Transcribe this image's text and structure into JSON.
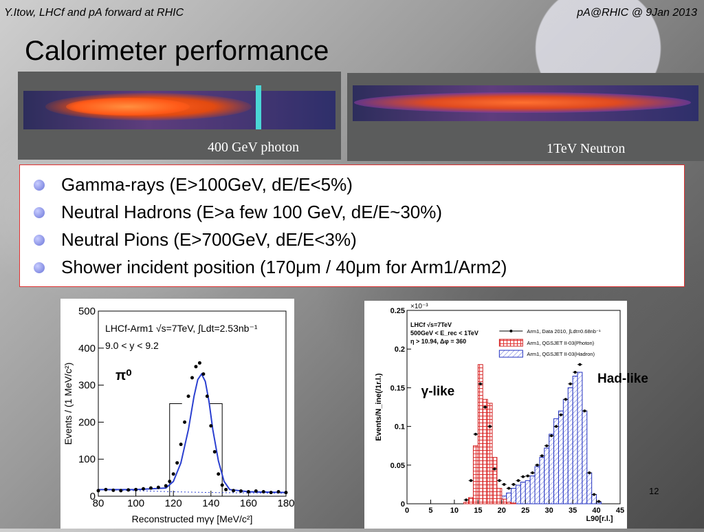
{
  "header": {
    "left": "Y.Itow,  LHCf and pA forward at RHIC",
    "right": "pA@RHIC @ 9Jan 2013"
  },
  "title": "Calorimeter performance",
  "images": [
    {
      "caption": "400 GeV photon"
    },
    {
      "caption": "1TeV Neutron"
    }
  ],
  "bullets": [
    "Gamma-rays (E>100GeV, dE/E<5%)",
    "Neutral Hadrons (E>a few 100 GeV, dE/E~30%)",
    "Neutral Pions (E>700GeV, dE/E<3%)",
    "Shower incident position (170μm / 40μm for Arm1/Arm2)"
  ],
  "page_number": "12",
  "chart_data": [
    {
      "type": "scatter",
      "xlabel": "Reconstructed mγγ [MeV/c²]",
      "ylabel": "Events / (1 MeV/c²)",
      "xlim": [
        80,
        180
      ],
      "ylim": [
        0,
        500
      ],
      "xticks": [
        "80",
        "100",
        "120",
        "140",
        "160",
        "180"
      ],
      "yticks": [
        "0",
        "100",
        "200",
        "300",
        "400",
        "500"
      ],
      "annotations": [
        "LHCf-Arm1 √s=7TeV, ∫Ldt=2.53nb⁻¹",
        "9.0 < y < 9.2",
        "π⁰"
      ],
      "x": [
        80,
        84,
        88,
        92,
        96,
        100,
        104,
        108,
        112,
        116,
        118,
        120,
        122,
        124,
        126,
        128,
        130,
        132,
        134,
        136,
        138,
        140,
        142,
        144,
        146,
        148,
        152,
        156,
        160,
        164,
        168,
        172,
        176,
        180
      ],
      "y": [
        15,
        18,
        16,
        15,
        17,
        18,
        20,
        22,
        24,
        28,
        40,
        60,
        90,
        140,
        200,
        270,
        320,
        350,
        360,
        330,
        270,
        190,
        120,
        60,
        30,
        18,
        15,
        14,
        12,
        14,
        12,
        10,
        12,
        10
      ],
      "fit": [
        [
          80,
          18
        ],
        [
          100,
          18
        ],
        [
          116,
          22
        ],
        [
          120,
          40
        ],
        [
          124,
          90
        ],
        [
          128,
          180
        ],
        [
          131,
          270
        ],
        [
          133,
          315
        ],
        [
          135,
          330
        ],
        [
          137,
          310
        ],
        [
          139,
          255
        ],
        [
          141,
          180
        ],
        [
          144,
          95
        ],
        [
          147,
          40
        ],
        [
          150,
          18
        ],
        [
          160,
          12
        ],
        [
          180,
          10
        ]
      ],
      "signal_window": [
        118,
        146
      ]
    },
    {
      "type": "bar",
      "xlabel": "L90[r.l.]",
      "ylabel": "Events/N_ine(/1r.l.)",
      "xlim": [
        0,
        45
      ],
      "ylim": [
        0,
        0.25
      ],
      "yscale_note": "×10⁻³",
      "xticks": [
        "0",
        "5",
        "10",
        "15",
        "20",
        "25",
        "30",
        "35",
        "40",
        "45"
      ],
      "yticks": [
        "0",
        "0.05",
        "0.1",
        "0.15",
        "0.2",
        "0.25"
      ],
      "legend": [
        "Arm1, Data 2010, ∫Ldt=0.68nb⁻¹",
        "Arm1, QGSJET II-03(Photon)",
        "Arm1, QGSJET II-03(Hadron)"
      ],
      "legend_position": "top-right",
      "annotations": [
        "LHCf √s=7TeV",
        "500GeV < E_rec < 1TeV",
        "η > 10.94, Δφ = 360",
        "γ-like",
        "Had-like"
      ],
      "bin_edges": [
        12,
        13,
        14,
        15,
        16,
        17,
        18,
        19,
        20,
        21,
        22,
        23,
        24,
        25,
        26,
        27,
        28,
        29,
        30,
        31,
        32,
        33,
        34,
        35,
        36,
        37,
        38,
        39,
        40,
        41
      ],
      "series": [
        {
          "name": "Arm1, QGSJET II-03(Photon)",
          "values": [
            0.002,
            0.008,
            0.075,
            0.18,
            0.135,
            0.13,
            0.06,
            0.02,
            0.006,
            0.002,
            0.001,
            0,
            0,
            0,
            0,
            0,
            0,
            0,
            0,
            0,
            0,
            0,
            0,
            0,
            0,
            0,
            0,
            0,
            0
          ]
        },
        {
          "name": "Arm1, QGSJET II-03(Hadron)",
          "values": [
            0,
            0,
            0.002,
            0.003,
            0.004,
            0.005,
            0.006,
            0.008,
            0.01,
            0.014,
            0.02,
            0.024,
            0.028,
            0.03,
            0.036,
            0.048,
            0.06,
            0.072,
            0.09,
            0.11,
            0.12,
            0.135,
            0.15,
            0.165,
            0.17,
            0.12,
            0.04,
            0.012,
            0.002
          ]
        },
        {
          "name": "Arm1, Data 2010, ∫Ldt=0.68nb⁻¹",
          "values": [
            0.005,
            0.03,
            0.09,
            0.155,
            0.125,
            0.1,
            0.045,
            0.03,
            0.025,
            0.02,
            0.025,
            0.03,
            0.035,
            0.036,
            0.04,
            0.05,
            0.062,
            0.075,
            0.088,
            0.1,
            0.115,
            0.135,
            0.155,
            0.17,
            0.18,
            0.12,
            0.04,
            0.012,
            0.003
          ]
        }
      ]
    }
  ]
}
